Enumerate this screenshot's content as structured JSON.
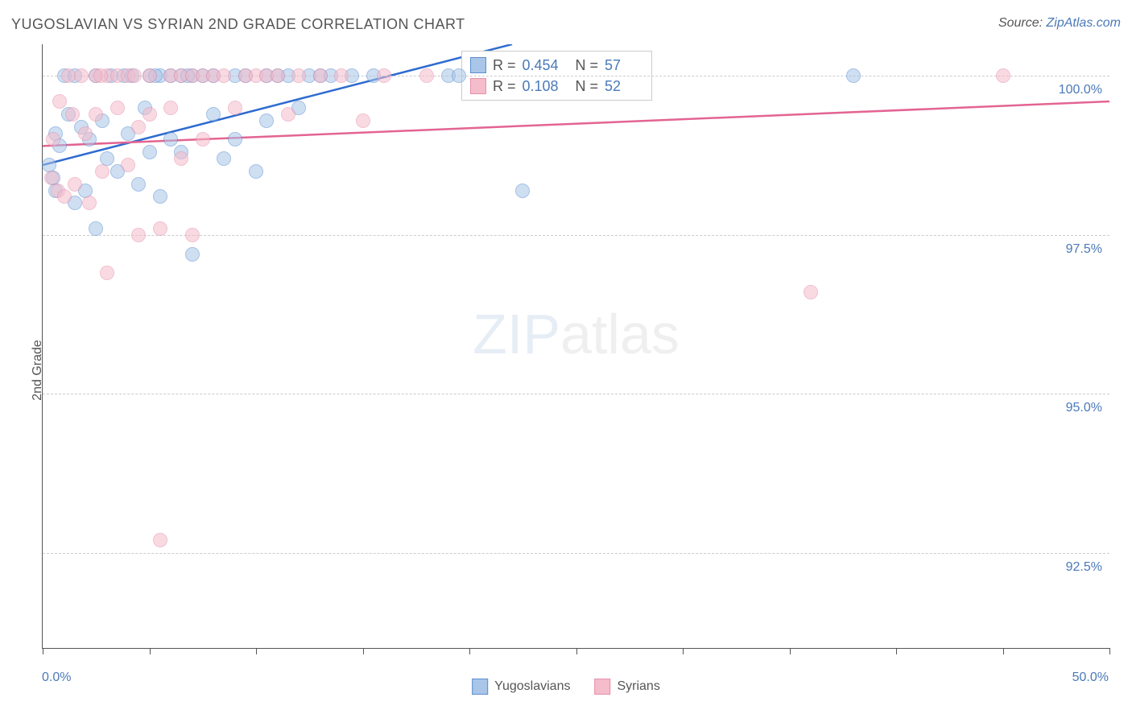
{
  "title": "YUGOSLAVIAN VS SYRIAN 2ND GRADE CORRELATION CHART",
  "source_label": "Source: ",
  "source_link": "ZipAtlas.com",
  "y_axis_label": "2nd Grade",
  "watermark_zip": "ZIP",
  "watermark_atlas": "atlas",
  "chart": {
    "type": "scatter",
    "xlim": [
      0,
      50
    ],
    "ylim": [
      91,
      100.5
    ],
    "x_ticks": [
      0,
      5,
      10,
      15,
      20,
      25,
      30,
      35,
      40,
      45,
      50
    ],
    "x_tick_labels": {
      "0": "0.0%",
      "50": "50.0%"
    },
    "y_ticks": [
      92.5,
      95.0,
      97.5,
      100.0
    ],
    "y_tick_labels": [
      "92.5%",
      "95.0%",
      "97.5%",
      "100.0%"
    ],
    "background_color": "#ffffff",
    "grid_color": "#cccccc",
    "marker_size": 18,
    "marker_opacity": 0.55,
    "title_fontsize": 18,
    "label_fontsize": 16,
    "tick_color": "#4a7ab8",
    "text_color": "#555555",
    "series": [
      {
        "name": "Yugoslavians",
        "fill": "#a9c5e8",
        "stroke": "#5b8fd0",
        "line_color": "#2e6bd0",
        "R": "0.454",
        "N": "57",
        "trend": {
          "x1": 0,
          "y1": 98.6,
          "x2": 22,
          "y2": 100.5
        },
        "points": [
          [
            0.3,
            98.6
          ],
          [
            0.5,
            98.4
          ],
          [
            0.6,
            99.1
          ],
          [
            0.6,
            98.2
          ],
          [
            0.8,
            98.9
          ],
          [
            1.0,
            100.0
          ],
          [
            1.2,
            99.4
          ],
          [
            1.5,
            98.0
          ],
          [
            1.5,
            100.0
          ],
          [
            1.8,
            99.2
          ],
          [
            2.0,
            98.2
          ],
          [
            2.2,
            99.0
          ],
          [
            2.5,
            100.0
          ],
          [
            2.5,
            97.6
          ],
          [
            2.8,
            99.3
          ],
          [
            3.0,
            98.7
          ],
          [
            3.2,
            100.0
          ],
          [
            3.5,
            98.5
          ],
          [
            3.8,
            100.0
          ],
          [
            4.0,
            99.1
          ],
          [
            4.2,
            100.0
          ],
          [
            4.5,
            98.3
          ],
          [
            4.8,
            99.5
          ],
          [
            5.0,
            98.8
          ],
          [
            5.0,
            100.0
          ],
          [
            5.5,
            98.1
          ],
          [
            5.5,
            100.0
          ],
          [
            6.0,
            99.0
          ],
          [
            6.0,
            100.0
          ],
          [
            6.5,
            98.8
          ],
          [
            6.5,
            100.0
          ],
          [
            7.0,
            97.2
          ],
          [
            7.0,
            100.0
          ],
          [
            7.5,
            100.0
          ],
          [
            8.0,
            99.4
          ],
          [
            8.0,
            100.0
          ],
          [
            8.5,
            98.7
          ],
          [
            9.0,
            99.0
          ],
          [
            9.0,
            100.0
          ],
          [
            9.5,
            100.0
          ],
          [
            10.0,
            98.5
          ],
          [
            10.5,
            99.3
          ],
          [
            10.5,
            100.0
          ],
          [
            11.0,
            100.0
          ],
          [
            11.5,
            100.0
          ],
          [
            12.0,
            99.5
          ],
          [
            12.5,
            100.0
          ],
          [
            13.0,
            100.0
          ],
          [
            13.5,
            100.0
          ],
          [
            14.5,
            100.0
          ],
          [
            15.5,
            100.0
          ],
          [
            19.0,
            100.0
          ],
          [
            19.5,
            100.0
          ],
          [
            22.5,
            98.2
          ],
          [
            38.0,
            100.0
          ],
          [
            5.3,
            100.0
          ],
          [
            6.8,
            100.0
          ]
        ]
      },
      {
        "name": "Syrians",
        "fill": "#f5bccb",
        "stroke": "#e590ab",
        "line_color": "#e36492",
        "R": "0.108",
        "N": "52",
        "trend": {
          "x1": 0,
          "y1": 98.9,
          "x2": 50,
          "y2": 99.6
        },
        "points": [
          [
            0.4,
            98.4
          ],
          [
            0.5,
            99.0
          ],
          [
            0.7,
            98.2
          ],
          [
            0.8,
            99.6
          ],
          [
            1.0,
            98.1
          ],
          [
            1.2,
            100.0
          ],
          [
            1.4,
            99.4
          ],
          [
            1.5,
            98.3
          ],
          [
            1.8,
            100.0
          ],
          [
            2.0,
            99.1
          ],
          [
            2.2,
            98.0
          ],
          [
            2.5,
            100.0
          ],
          [
            2.5,
            99.4
          ],
          [
            2.8,
            98.5
          ],
          [
            3.0,
            96.9
          ],
          [
            3.0,
            100.0
          ],
          [
            3.5,
            99.5
          ],
          [
            3.5,
            100.0
          ],
          [
            4.0,
            98.6
          ],
          [
            4.0,
            100.0
          ],
          [
            4.5,
            99.2
          ],
          [
            4.5,
            97.5
          ],
          [
            5.0,
            99.4
          ],
          [
            5.0,
            100.0
          ],
          [
            5.5,
            97.6
          ],
          [
            5.5,
            92.7
          ],
          [
            6.0,
            99.5
          ],
          [
            6.0,
            100.0
          ],
          [
            6.5,
            100.0
          ],
          [
            6.5,
            98.7
          ],
          [
            7.0,
            100.0
          ],
          [
            7.0,
            97.5
          ],
          [
            7.5,
            99.0
          ],
          [
            7.5,
            100.0
          ],
          [
            8.0,
            100.0
          ],
          [
            8.5,
            100.0
          ],
          [
            9.0,
            99.5
          ],
          [
            9.5,
            100.0
          ],
          [
            10.0,
            100.0
          ],
          [
            10.5,
            100.0
          ],
          [
            11.0,
            100.0
          ],
          [
            11.5,
            99.4
          ],
          [
            12.0,
            100.0
          ],
          [
            13.0,
            100.0
          ],
          [
            14.0,
            100.0
          ],
          [
            15.0,
            99.3
          ],
          [
            16.0,
            100.0
          ],
          [
            18.0,
            100.0
          ],
          [
            36.0,
            96.6
          ],
          [
            45.0,
            100.0
          ],
          [
            2.7,
            100.0
          ],
          [
            4.3,
            100.0
          ]
        ]
      }
    ]
  },
  "stats_box": {
    "R_label": "R = ",
    "N_label": "N = "
  }
}
